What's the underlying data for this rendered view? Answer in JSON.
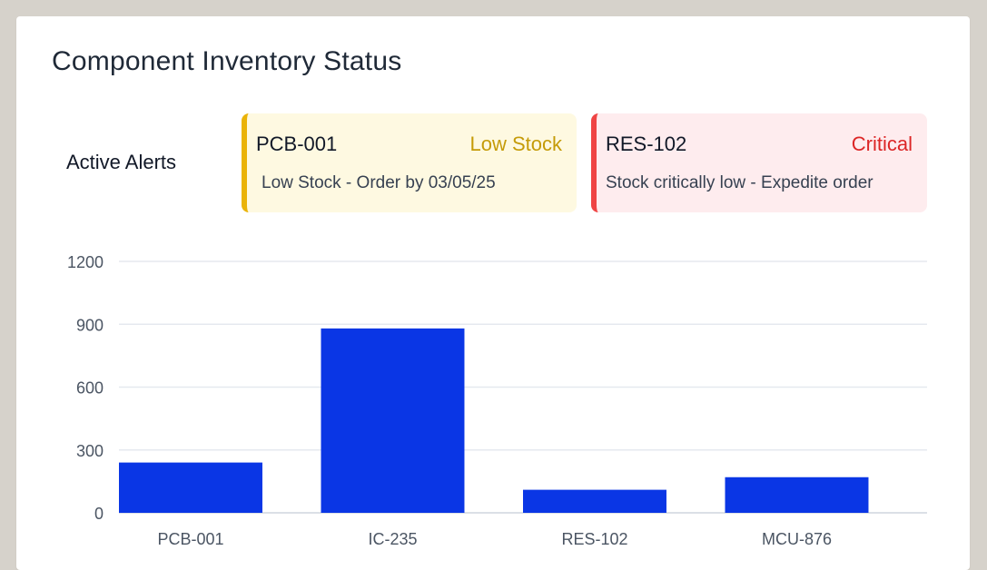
{
  "panel": {
    "title": "Component Inventory Status"
  },
  "alerts": {
    "label": "Active Alerts",
    "items": [
      {
        "code": "PCB-001",
        "status": "Low Stock",
        "message": "Low Stock - Order by 03/05/25",
        "accent": "#eab308",
        "status_color": "#c59b08",
        "background": "#fef9e1"
      },
      {
        "code": "RES-102",
        "status": "Critical",
        "message": "Stock critically low - Expedite order",
        "accent": "#ef4444",
        "status_color": "#dc2626",
        "background": "#feecee"
      }
    ]
  },
  "chart_data": {
    "type": "bar",
    "categories": [
      "PCB-001",
      "IC-235",
      "RES-102",
      "MCU-876"
    ],
    "values": [
      240,
      880,
      110,
      170
    ],
    "ylim": [
      0,
      1200
    ],
    "yticks": [
      0,
      300,
      600,
      900,
      1200
    ],
    "grid": true,
    "bar_color": "#0a36e5"
  }
}
